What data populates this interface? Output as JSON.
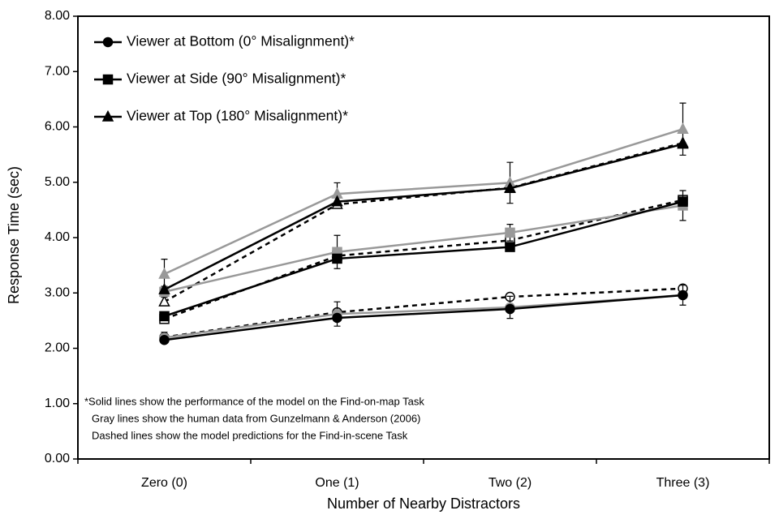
{
  "chart_data": {
    "type": "line",
    "x_label": "Number of Nearby Distractors",
    "y_label": "Response Time (sec)",
    "categories": [
      "Zero (0)",
      "One (1)",
      "Two (2)",
      "Three (3)"
    ],
    "ylim": [
      0,
      8
    ],
    "yticks": [
      {
        "value": 0,
        "label": "0.00"
      },
      {
        "value": 1,
        "label": "1.00"
      },
      {
        "value": 2,
        "label": "2.00"
      },
      {
        "value": 3,
        "label": "3.00"
      },
      {
        "value": 4,
        "label": "4.00"
      },
      {
        "value": 5,
        "label": "5.00"
      },
      {
        "value": 6,
        "label": "6.00"
      },
      {
        "value": 7,
        "label": "7.00"
      },
      {
        "value": 8,
        "label": "8.00"
      }
    ],
    "series": [
      {
        "name": "Viewer at Bottom (0° Misalignment)*",
        "color": "#000000",
        "marker": "circle",
        "marker_fill": "filled",
        "line_style": "solid",
        "values": [
          2.15,
          2.55,
          2.71,
          2.96
        ]
      },
      {
        "name": "Viewer at Side (90° Misalignment)*",
        "color": "#000000",
        "marker": "square",
        "marker_fill": "filled",
        "line_style": "solid",
        "values": [
          2.58,
          3.62,
          3.83,
          4.65
        ]
      },
      {
        "name": "Viewer at Top (180° Misalignment)*",
        "color": "#000000",
        "marker": "triangle",
        "marker_fill": "filled",
        "line_style": "solid",
        "values": [
          3.06,
          4.65,
          4.89,
          5.69
        ]
      },
      {
        "color": "#999999",
        "marker": "circle",
        "marker_fill": "filled",
        "line_style": "solid",
        "values": [
          2.19,
          2.62,
          2.74,
          2.96
        ],
        "errors": [
          0.1,
          0.22,
          0.2,
          0.18
        ]
      },
      {
        "color": "#999999",
        "marker": "square",
        "marker_fill": "filled",
        "line_style": "solid",
        "values": [
          3.02,
          3.74,
          4.09,
          4.58
        ],
        "errors": [
          0.1,
          0.3,
          0.15,
          0.27
        ]
      },
      {
        "color": "#999999",
        "marker": "triangle",
        "marker_fill": "filled",
        "line_style": "solid",
        "values": [
          3.34,
          4.79,
          4.99,
          5.96
        ],
        "errors": [
          0.27,
          0.2,
          0.37,
          0.47
        ]
      },
      {
        "color": "#000000",
        "marker": "circle",
        "marker_fill": "open",
        "line_style": "dashed",
        "values": [
          2.2,
          2.65,
          2.93,
          3.08
        ]
      },
      {
        "color": "#000000",
        "marker": "square",
        "marker_fill": "open",
        "line_style": "dashed",
        "values": [
          2.53,
          3.67,
          3.95,
          4.68
        ]
      },
      {
        "color": "#000000",
        "marker": "triangle",
        "marker_fill": "open",
        "line_style": "dashed",
        "values": [
          2.84,
          4.6,
          4.9,
          5.71
        ]
      }
    ],
    "legend_series": [
      0,
      1,
      2
    ],
    "legend": "top-left",
    "note": [
      "*Solid lines show the performance of the model on the Find-on-map Task",
      "Gray lines show the human data from Gunzelmann & Anderson (2006)",
      "Dashed lines show the model predictions for the Find-in-scene Task"
    ]
  }
}
